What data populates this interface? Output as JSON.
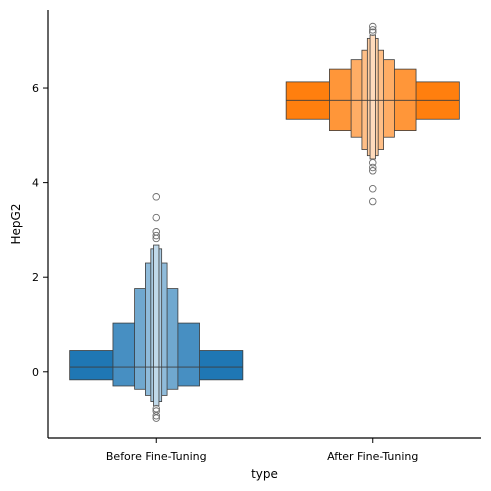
{
  "chart_data": {
    "type": "boxen",
    "xlabel": "type",
    "ylabel": "HepG2",
    "categories": [
      "Before Fine-Tuning",
      "After Fine-Tuning"
    ],
    "ylim": [
      -1.4,
      7.65
    ],
    "yticks": [
      0,
      2,
      4,
      6
    ],
    "grid": false,
    "groups": [
      {
        "name": "Before Fine-Tuning",
        "color": "#1f77b4",
        "median": 0.1,
        "boxes": [
          {
            "lower": -0.17,
            "upper": 0.45,
            "width": 0.8,
            "shade": 0.0
          },
          {
            "lower": -0.3,
            "upper": 1.03,
            "width": 0.4,
            "shade": 0.18
          },
          {
            "lower": -0.37,
            "upper": 1.76,
            "width": 0.2,
            "shade": 0.36
          },
          {
            "lower": -0.5,
            "upper": 2.3,
            "width": 0.1,
            "shade": 0.5
          },
          {
            "lower": -0.63,
            "upper": 2.6,
            "width": 0.05,
            "shade": 0.62
          },
          {
            "lower": -0.72,
            "upper": 2.68,
            "width": 0.025,
            "shade": 0.72
          }
        ],
        "outliers_high": [
          2.82,
          2.88,
          2.96,
          3.26,
          3.7
        ],
        "outliers_low": [
          -0.78,
          -0.83,
          -0.93,
          -0.98
        ]
      },
      {
        "name": "After Fine-Tuning",
        "color": "#ff7f0e",
        "median": 5.74,
        "boxes": [
          {
            "lower": 5.34,
            "upper": 6.13,
            "width": 0.8,
            "shade": 0.0
          },
          {
            "lower": 5.1,
            "upper": 6.4,
            "width": 0.4,
            "shade": 0.18
          },
          {
            "lower": 4.96,
            "upper": 6.6,
            "width": 0.2,
            "shade": 0.36
          },
          {
            "lower": 4.7,
            "upper": 6.8,
            "width": 0.1,
            "shade": 0.5
          },
          {
            "lower": 4.57,
            "upper": 7.05,
            "width": 0.05,
            "shade": 0.62
          },
          {
            "lower": 4.5,
            "upper": 7.12,
            "width": 0.025,
            "shade": 0.72
          }
        ],
        "outliers_high": [
          7.18,
          7.23,
          7.3
        ],
        "outliers_low": [
          4.42,
          4.32,
          4.25,
          3.87,
          3.6
        ]
      }
    ]
  }
}
